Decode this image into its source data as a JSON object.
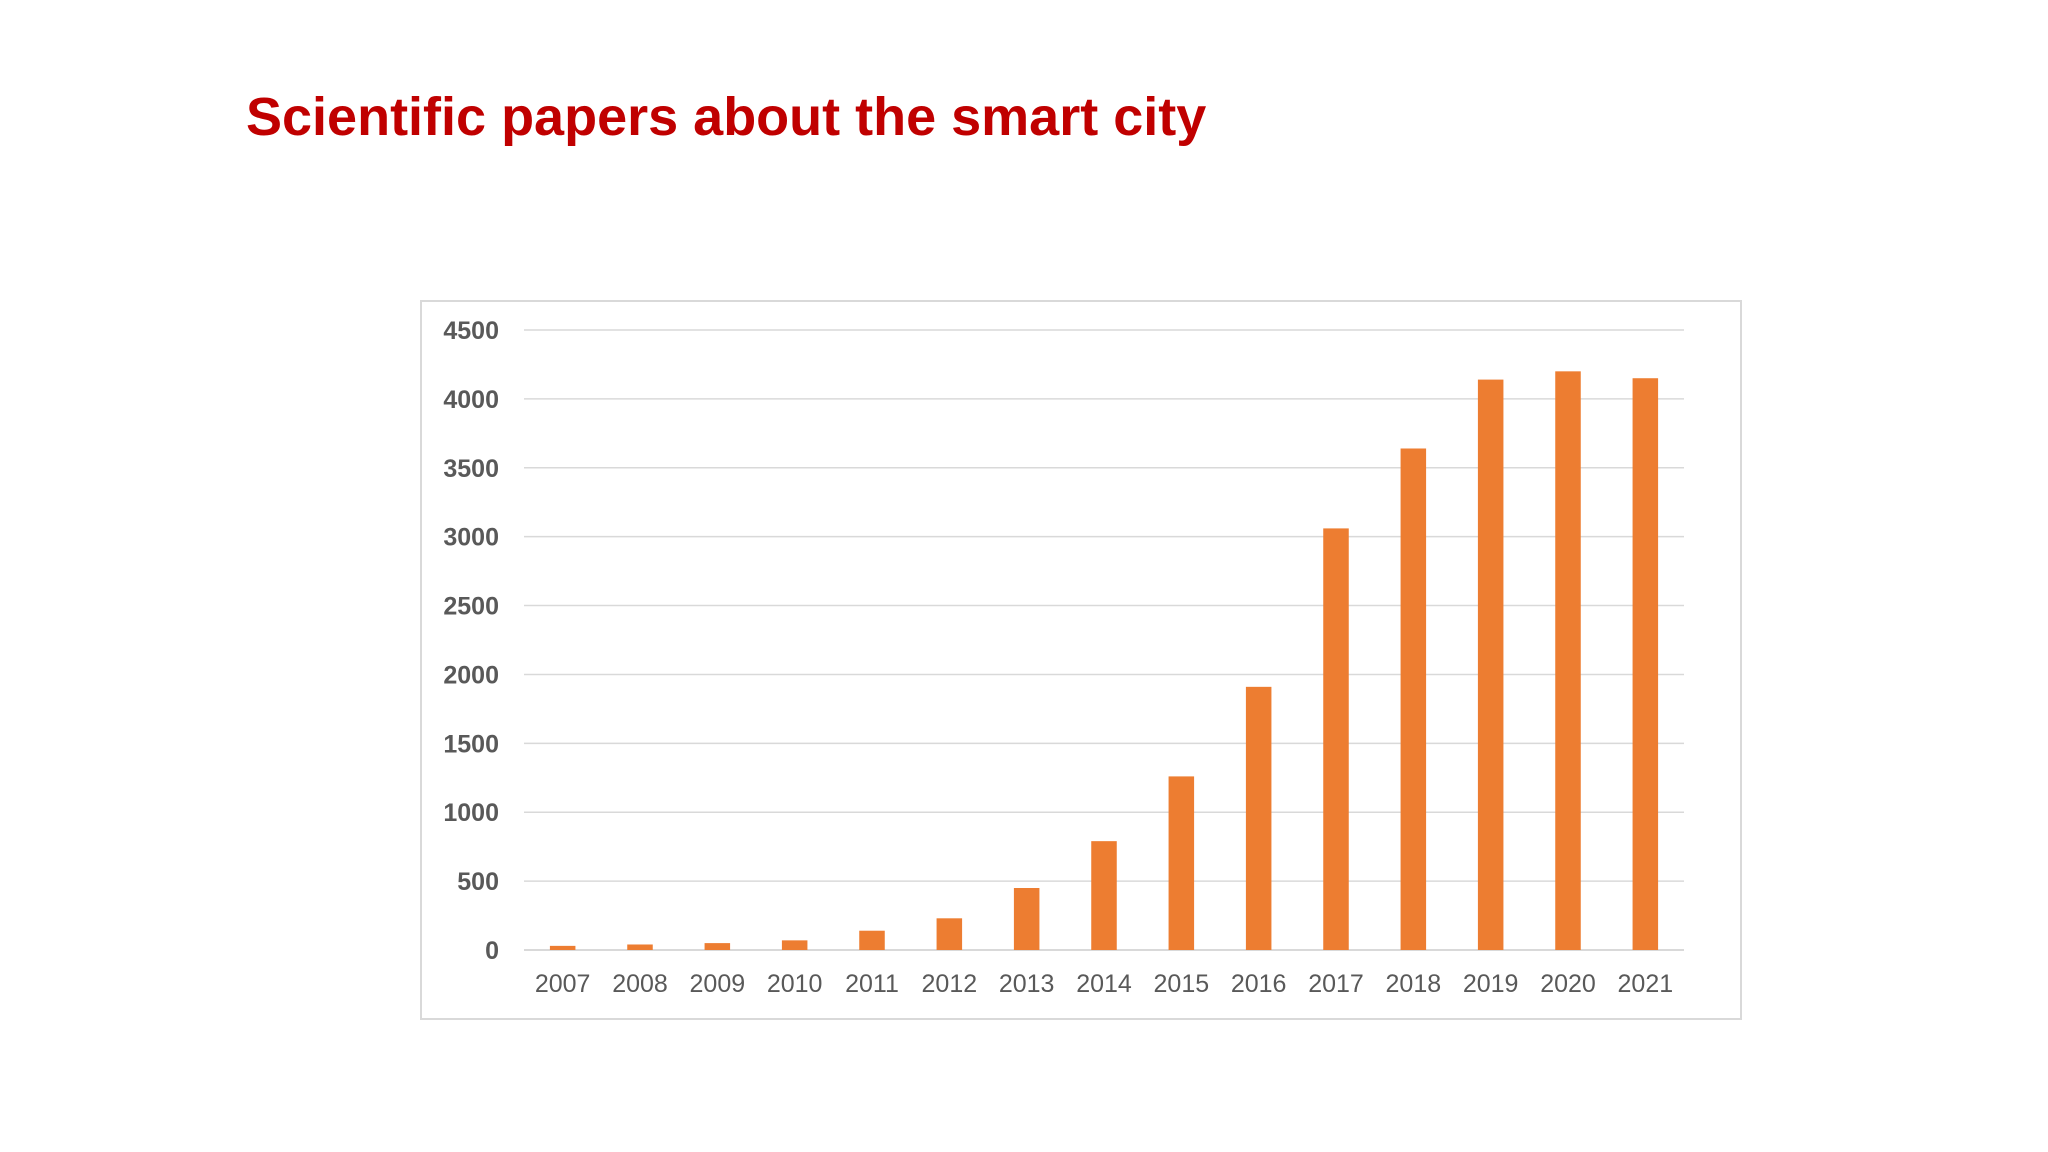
{
  "slide": {
    "title": "Scientific papers about the smart city"
  },
  "chart_data": {
    "type": "bar",
    "title": "",
    "xlabel": "",
    "ylabel": "",
    "categories": [
      "2007",
      "2008",
      "2009",
      "2010",
      "2011",
      "2012",
      "2013",
      "2014",
      "2015",
      "2016",
      "2017",
      "2018",
      "2019",
      "2020",
      "2021"
    ],
    "values": [
      30,
      40,
      50,
      70,
      140,
      230,
      450,
      790,
      1260,
      1910,
      3060,
      3640,
      4140,
      4200,
      4150
    ],
    "ylim": [
      0,
      4500
    ],
    "yticks": [
      "0",
      "500",
      "1000",
      "1500",
      "2000",
      "2500",
      "3000",
      "3500",
      "4000",
      "4500"
    ],
    "grid": true,
    "legend": "none",
    "bar_color": "#ed7d31",
    "grid_color": "#d9d9d9",
    "tick_label_color": "#595959"
  }
}
